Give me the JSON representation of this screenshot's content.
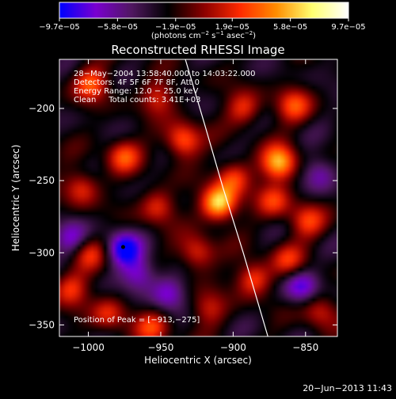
{
  "chart_data": {
    "type": "heatmap",
    "title": "Reconstructed RHESSI Image",
    "xlabel": "Heliocentric X (arcsec)",
    "ylabel": "Heliocentric Y (arcsec)",
    "xlim": [
      -1020,
      -828
    ],
    "ylim": [
      -358,
      -166
    ],
    "x_ticks": [
      {
        "value": -1000,
        "label": "−1000"
      },
      {
        "value": -950,
        "label": "−950"
      },
      {
        "value": -900,
        "label": "−900"
      },
      {
        "value": -850,
        "label": "−850"
      }
    ],
    "y_ticks": [
      {
        "value": -200,
        "label": "−200"
      },
      {
        "value": -250,
        "label": "−250"
      },
      {
        "value": -300,
        "label": "−300"
      },
      {
        "value": -350,
        "label": "−350"
      }
    ],
    "colorbar": {
      "min": -9.7e-05,
      "max": 9.7e-05,
      "tick_values": [
        -9.7e-05,
        -5.8e-05,
        -1.9e-05,
        1.9e-05,
        5.8e-05,
        9.7e-05
      ],
      "tick_labels": [
        "−9.7e−05",
        "−5.8e−05",
        "−1.9e−05",
        "1.9e−05",
        "5.8e−05",
        "9.7e−05"
      ],
      "units_prefix": "(photons cm",
      "units_sup1": "−2",
      "units_mid": " s",
      "units_sup2": "−1",
      "units_after": " asec",
      "units_sup3": "−2",
      "units_suffix": ")",
      "colors": [
        "#0000ff",
        "#7a00d0",
        "#501860",
        "#000000",
        "#8b0000",
        "#ff2a00",
        "#ff8c00",
        "#ffff70",
        "#ffffff"
      ]
    },
    "info_lines": [
      "28−May−2004 13:58:40.000 to 14:03:22.000",
      "Detectors: 4F 5F 6F 7F 8F, Att 0",
      "Energy Range: 12.0 − 25.0 keV",
      "Clean     Total counts: 3.41E+03"
    ],
    "peak_label": "Position of Peak = [−913,−275]",
    "peak": {
      "x": -913,
      "y": -275
    },
    "limb_points": [
      [
        -933,
        -166
      ],
      [
        -920,
        -210
      ],
      [
        -907,
        -255
      ],
      [
        -893,
        -300
      ],
      [
        -876,
        -358
      ]
    ],
    "marker": {
      "x": -976,
      "y": -296
    },
    "bright_sources": [
      {
        "x": -910,
        "y": -266,
        "v": 1.0
      },
      {
        "x": -868,
        "y": -238,
        "v": 0.9
      },
      {
        "x": -935,
        "y": -222,
        "v": 0.7
      },
      {
        "x": -998,
        "y": -183,
        "v": 0.6
      },
      {
        "x": -976,
        "y": -233,
        "v": 0.55
      },
      {
        "x": -1005,
        "y": -255,
        "v": 0.5
      },
      {
        "x": -952,
        "y": -268,
        "v": 0.5
      },
      {
        "x": -925,
        "y": -300,
        "v": 0.55
      },
      {
        "x": -886,
        "y": -318,
        "v": 0.6
      },
      {
        "x": -900,
        "y": -248,
        "v": 0.55
      },
      {
        "x": -858,
        "y": -198,
        "v": 0.55
      },
      {
        "x": -893,
        "y": -200,
        "v": 0.5
      },
      {
        "x": -849,
        "y": -278,
        "v": 0.5
      },
      {
        "x": -862,
        "y": -305,
        "v": 0.45
      },
      {
        "x": -840,
        "y": -340,
        "v": 0.45
      },
      {
        "x": -1012,
        "y": -325,
        "v": 0.5
      },
      {
        "x": -956,
        "y": -352,
        "v": 0.5
      },
      {
        "x": -986,
        "y": -342,
        "v": 0.45
      },
      {
        "x": -1000,
        "y": -300,
        "v": 0.45
      },
      {
        "x": -952,
        "y": -192,
        "v": 0.45
      },
      {
        "x": -872,
        "y": -264,
        "v": 0.5
      },
      {
        "x": -917,
        "y": -339,
        "v": 0.4
      }
    ],
    "dark_sources": [
      {
        "x": -976,
        "y": -297,
        "v": -0.7
      },
      {
        "x": -853,
        "y": -323,
        "v": -0.55
      },
      {
        "x": -1012,
        "y": -290,
        "v": -0.45
      },
      {
        "x": -965,
        "y": -315,
        "v": -0.5
      },
      {
        "x": -840,
        "y": -245,
        "v": -0.4
      },
      {
        "x": -945,
        "y": -328,
        "v": -0.45
      }
    ]
  },
  "timestamp": "20−Jun−2013 11:43"
}
